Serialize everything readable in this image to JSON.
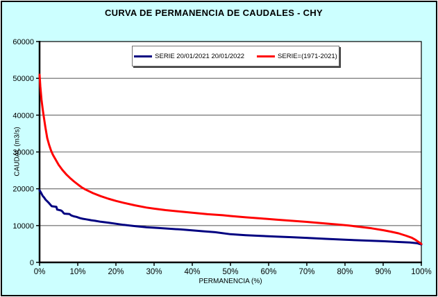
{
  "title": "CURVA DE PERMANENCIA DE CAUDALES - CHY",
  "colors": {
    "background": "#CCFFFF",
    "plot_background": "#FFFFFF",
    "grid": "#808080",
    "axis": "#000000",
    "series_blue": "#000080",
    "series_red": "#FF0000"
  },
  "legend": {
    "items": [
      {
        "label": "SERIE 20/01/2021 20/01/2022",
        "color": "#000080"
      },
      {
        "label": "SERIE=(1971-2021)",
        "color": "#FF0000"
      }
    ]
  },
  "chart_data": {
    "type": "line",
    "title": "CURVA DE PERMANENCIA DE CAUDALES - CHY",
    "xlabel": "PERMANENCIA (%)",
    "ylabel": "CAUDAL (m3/s)",
    "xlim": [
      0,
      100
    ],
    "ylim": [
      0,
      60000
    ],
    "x_tick_values": [
      0,
      10,
      20,
      30,
      40,
      50,
      60,
      70,
      80,
      90,
      100
    ],
    "x_tick_labels": [
      "0%",
      "10%",
      "20%",
      "30%",
      "40%",
      "50%",
      "60%",
      "70%",
      "80%",
      "90%",
      "100%"
    ],
    "y_tick_values": [
      0,
      10000,
      20000,
      30000,
      40000,
      50000,
      60000
    ],
    "y_tick_labels": [
      "0",
      "10000",
      "20000",
      "30000",
      "40000",
      "50000",
      "60000"
    ],
    "grid": "horizontal",
    "legend_position": "top-center",
    "series": [
      {
        "name": "SERIE 20/01/2021 20/01/2022",
        "color": "#000080",
        "x": [
          0,
          0.4,
          0.8,
          1.2,
          1.6,
          2,
          2.4,
          2.8,
          3.2,
          4.4,
          4.6,
          5.6,
          5.9,
          6.3,
          6.5,
          7.8,
          8.3,
          9,
          9.7,
          10.5,
          11.3,
          12.2,
          13.5,
          14.5,
          16,
          18,
          20,
          22,
          25,
          28,
          31,
          34,
          37,
          40,
          43,
          46,
          50,
          54,
          58,
          62,
          66,
          70,
          75,
          80,
          85,
          90,
          94,
          97,
          99,
          100
        ],
        "y": [
          19600,
          18900,
          18100,
          17600,
          17000,
          16600,
          16200,
          15700,
          15250,
          15100,
          14350,
          14100,
          13900,
          13400,
          13250,
          13150,
          12750,
          12500,
          12350,
          12050,
          11850,
          11700,
          11450,
          11300,
          11050,
          10800,
          10500,
          10200,
          9850,
          9550,
          9350,
          9150,
          8950,
          8700,
          8450,
          8200,
          7650,
          7400,
          7200,
          7000,
          6850,
          6650,
          6400,
          6150,
          5950,
          5750,
          5550,
          5400,
          5200,
          4850
        ]
      },
      {
        "name": "SERIE=(1971-2021)",
        "color": "#FF0000",
        "x": [
          0,
          0.2,
          0.5,
          0.8,
          1,
          1.5,
          2,
          2.5,
          3,
          3.5,
          4,
          5,
          6,
          7,
          8,
          9,
          10,
          11,
          12,
          14,
          16,
          18,
          20,
          22,
          25,
          28,
          30,
          33,
          36,
          40,
          44,
          48,
          50,
          54,
          58,
          62,
          66,
          70,
          74,
          78,
          81,
          84,
          87,
          90,
          92,
          94,
          96,
          97.5,
          98.5,
          99.2,
          100
        ],
        "y": [
          51000,
          47800,
          44200,
          41800,
          40300,
          36800,
          33800,
          31900,
          30400,
          29200,
          28300,
          26500,
          25100,
          23900,
          22900,
          22000,
          21200,
          20400,
          19800,
          18800,
          18000,
          17300,
          16700,
          16200,
          15500,
          14900,
          14600,
          14200,
          13900,
          13500,
          13100,
          12800,
          12600,
          12250,
          11950,
          11600,
          11300,
          11000,
          10650,
          10300,
          10000,
          9650,
          9250,
          8750,
          8350,
          7900,
          7250,
          6700,
          6100,
          5600,
          5000
        ]
      }
    ]
  }
}
